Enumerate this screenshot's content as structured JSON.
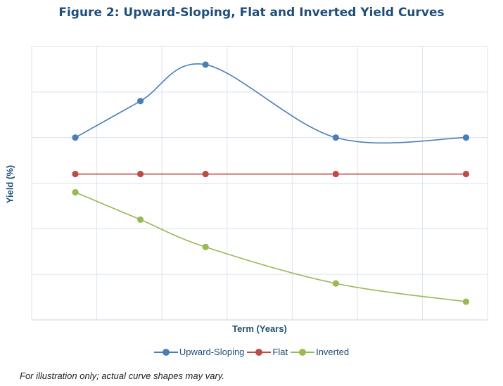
{
  "chart_data": {
    "type": "line",
    "title": "Figure 2: Upward-Sloping, Flat and Inverted Yield Curves",
    "xlabel": "Term (Years)",
    "ylabel": "Yield (%)",
    "x": [
      1,
      2,
      3,
      5,
      7
    ],
    "xlim": [
      0.33,
      7.33
    ],
    "ylim": [
      0,
      6
    ],
    "grid": true,
    "legend_position": "bottom",
    "smooth": true,
    "series": [
      {
        "name": "Upward-Sloping",
        "color": "#4a7ebb",
        "values": [
          4.0,
          4.8,
          5.6,
          4.0,
          4.0
        ]
      },
      {
        "name": "Flat",
        "color": "#be4b48",
        "values": [
          3.2,
          3.2,
          3.2,
          3.2,
          3.2
        ]
      },
      {
        "name": "Inverted",
        "color": "#98b954",
        "values": [
          2.8,
          2.2,
          1.6,
          0.8,
          0.4
        ]
      }
    ]
  },
  "footnote": "For illustration only; actual curve shapes may vary."
}
